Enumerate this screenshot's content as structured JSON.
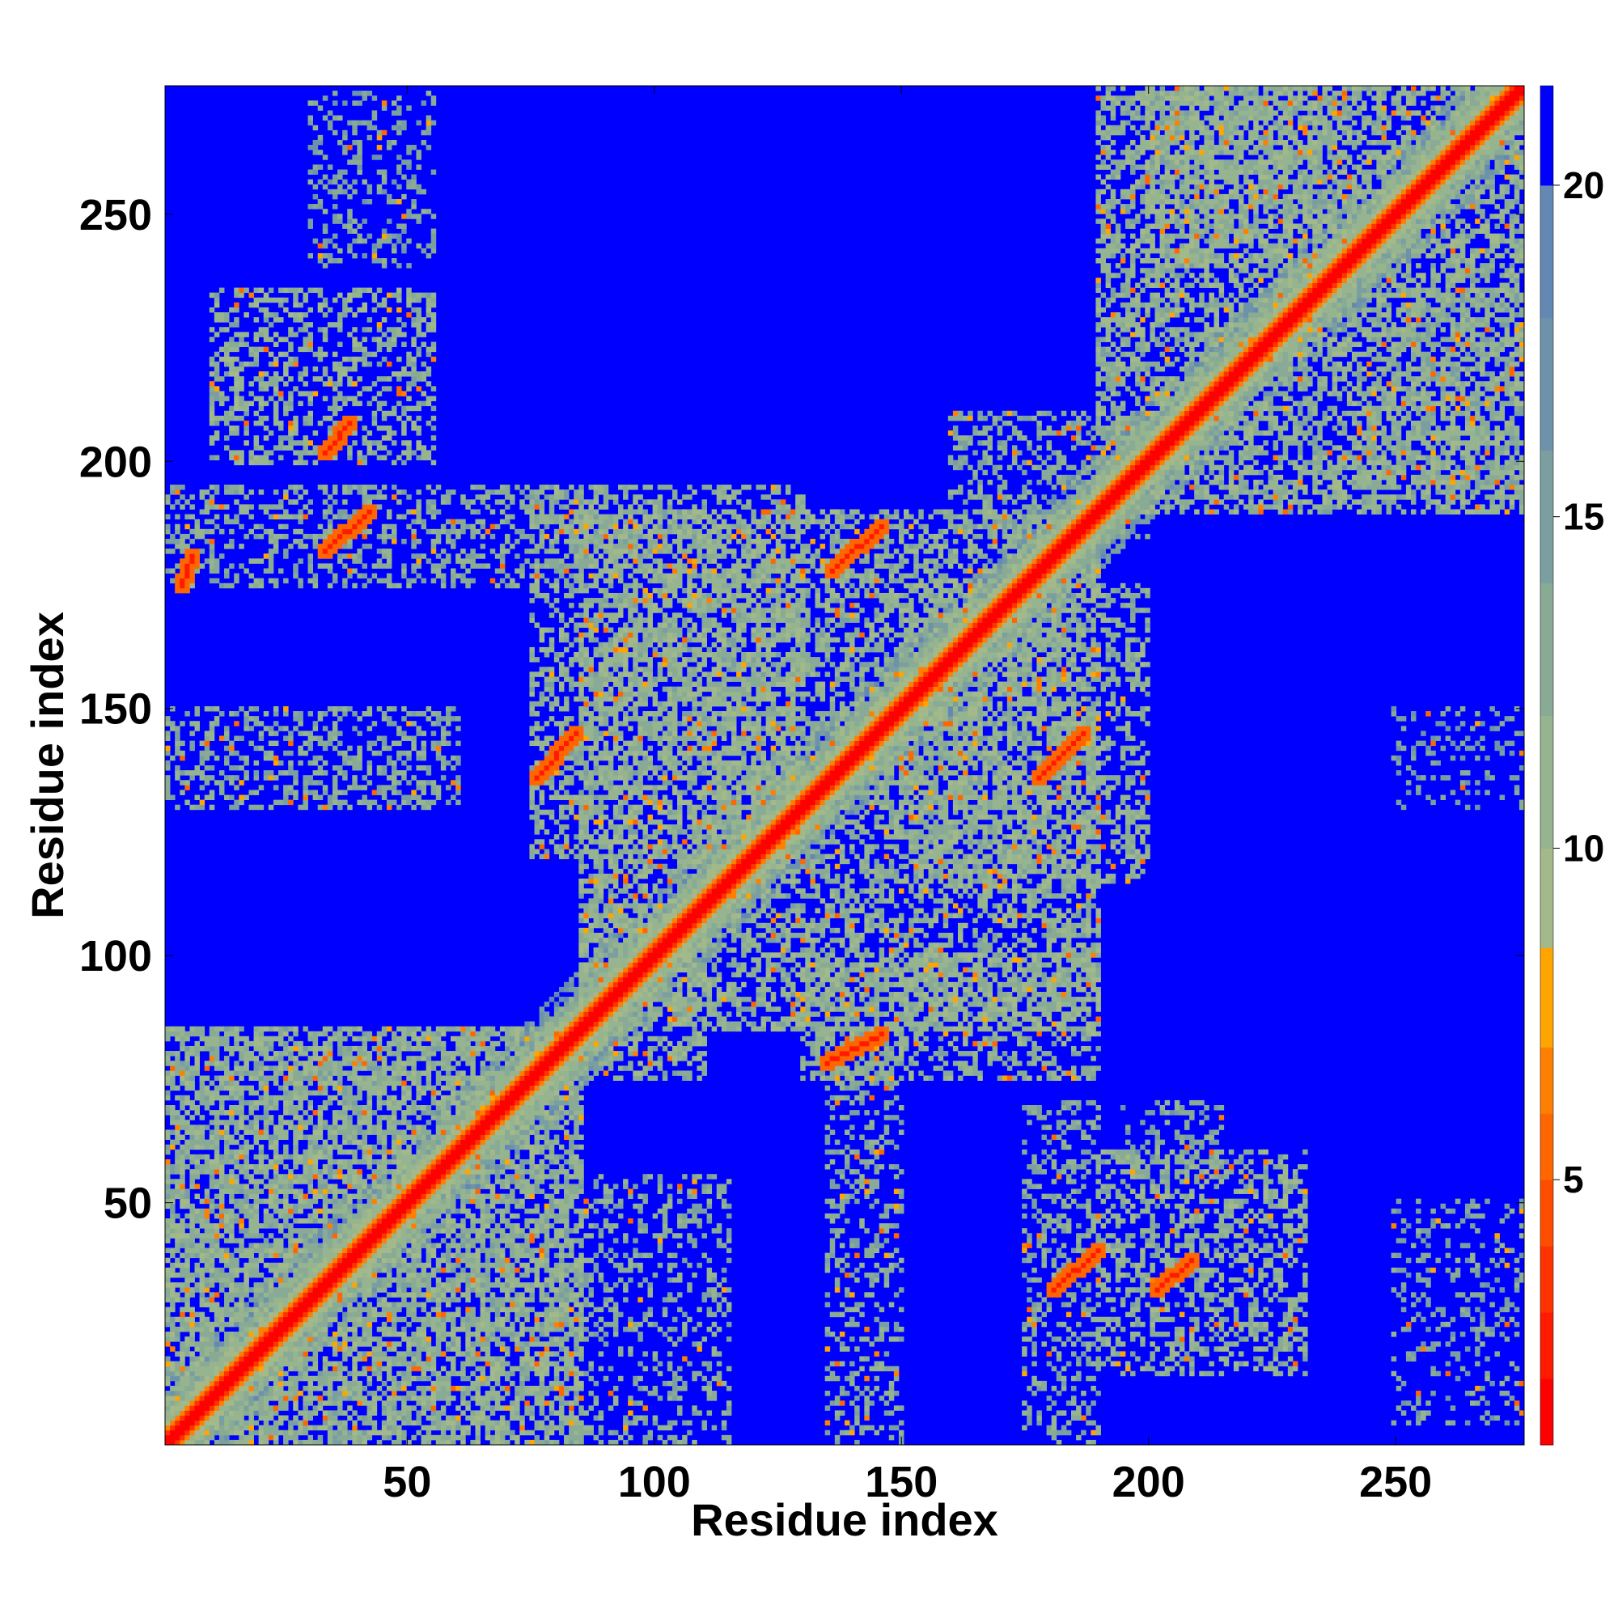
{
  "chart_data": {
    "type": "heatmap",
    "title": "",
    "xlabel": "Residue index",
    "ylabel": "Residue index",
    "n_residues": 276,
    "xlim": [
      1,
      276
    ],
    "ylim": [
      1,
      276
    ],
    "x_ticks": [
      50,
      100,
      150,
      200,
      250
    ],
    "y_ticks": [
      50,
      100,
      150,
      200,
      250
    ],
    "colorbar": {
      "ticks": [
        5,
        10,
        15,
        20
      ],
      "range": [
        1,
        21.5
      ],
      "colors": [
        {
          "until": 2,
          "color": "#ff0000"
        },
        {
          "until": 3,
          "color": "#ff1a00"
        },
        {
          "until": 4,
          "color": "#ff3300"
        },
        {
          "until": 5,
          "color": "#ff4d00"
        },
        {
          "until": 6,
          "color": "#ff6600"
        },
        {
          "until": 7,
          "color": "#ff8000"
        },
        {
          "until": 8.5,
          "color": "#ffa500"
        },
        {
          "until": 10,
          "color": "#a3b98a"
        },
        {
          "until": 12,
          "color": "#95b48f"
        },
        {
          "until": 14,
          "color": "#89aa95"
        },
        {
          "until": 16,
          "color": "#7b9fa0"
        },
        {
          "until": 18,
          "color": "#6d93aa"
        },
        {
          "until": 20,
          "color": "#6388b3"
        },
        {
          "until": 21.5,
          "color": "#0000ff"
        }
      ]
    },
    "background_value": 21.5,
    "contact_blocks": [
      {
        "x": [
          1,
          85
        ],
        "y": [
          1,
          85
        ],
        "value": 12,
        "density": 0.75
      },
      {
        "x": [
          85,
          190
        ],
        "y": [
          85,
          190
        ],
        "value": 12,
        "density": 0.55
      },
      {
        "x": [
          190,
          276
        ],
        "y": [
          190,
          276
        ],
        "value": 12,
        "density": 0.6
      },
      {
        "x": [
          85,
          115
        ],
        "y": [
          1,
          55
        ],
        "value": 13,
        "density": 0.3
      },
      {
        "x": [
          135,
          150
        ],
        "y": [
          1,
          85
        ],
        "value": 13,
        "density": 0.35
      },
      {
        "x": [
          175,
          190
        ],
        "y": [
          1,
          70
        ],
        "value": 13,
        "density": 0.35
      },
      {
        "x": [
          190,
          232
        ],
        "y": [
          15,
          60
        ],
        "value": 12,
        "density": 0.45
      },
      {
        "x": [
          250,
          276
        ],
        "y": [
          5,
          50
        ],
        "value": 14,
        "density": 0.25
      },
      {
        "x": [
          85,
          110
        ],
        "y": [
          75,
          110
        ],
        "value": 12,
        "density": 0.5
      },
      {
        "x": [
          130,
          190
        ],
        "y": [
          75,
          100
        ],
        "value": 12,
        "density": 0.45
      },
      {
        "x": [
          1,
          60
        ],
        "y": [
          130,
          150
        ],
        "value": 13,
        "density": 0.45
      },
      {
        "x": [
          1,
          90
        ],
        "y": [
          175,
          195
        ],
        "value": 13,
        "density": 0.4
      },
      {
        "x": [
          10,
          55
        ],
        "y": [
          200,
          235
        ],
        "value": 12,
        "density": 0.45
      },
      {
        "x": [
          30,
          55
        ],
        "y": [
          240,
          275
        ],
        "value": 14,
        "density": 0.3
      },
      {
        "x": [
          75,
          130
        ],
        "y": [
          120,
          195
        ],
        "value": 12,
        "density": 0.45
      },
      {
        "x": [
          150,
          200
        ],
        "y": [
          115,
          175
        ],
        "value": 12,
        "density": 0.45
      },
      {
        "x": [
          160,
          200
        ],
        "y": [
          185,
          210
        ],
        "value": 13,
        "density": 0.4
      },
      {
        "x": [
          245,
          276
        ],
        "y": [
          195,
          235
        ],
        "value": 13,
        "density": 0.4
      },
      {
        "x": [
          200,
          240
        ],
        "y": [
          240,
          276
        ],
        "value": 12,
        "density": 0.5
      },
      {
        "x": [
          250,
          276
        ],
        "y": [
          130,
          150
        ],
        "value": 15,
        "density": 0.2
      },
      {
        "x": [
          195,
          215
        ],
        "y": [
          55,
          70
        ],
        "value": 14,
        "density": 0.3
      }
    ],
    "contact_strands": [
      {
        "from": [
          33,
          182
        ],
        "to": [
          42,
          190
        ],
        "value": 3
      },
      {
        "from": [
          33,
          202
        ],
        "to": [
          38,
          208
        ],
        "value": 3
      },
      {
        "from": [
          76,
          136
        ],
        "to": [
          84,
          145
        ],
        "value": 3
      },
      {
        "from": [
          135,
          78
        ],
        "to": [
          146,
          84
        ],
        "value": 3
      },
      {
        "from": [
          136,
          178
        ],
        "to": [
          146,
          187
        ],
        "value": 3
      },
      {
        "from": [
          178,
          136
        ],
        "to": [
          187,
          145
        ],
        "value": 3
      },
      {
        "from": [
          181,
          32
        ],
        "to": [
          190,
          40
        ],
        "value": 3
      },
      {
        "from": [
          202,
          32
        ],
        "to": [
          209,
          38
        ],
        "value": 3
      },
      {
        "from": [
          4,
          175
        ],
        "to": [
          6,
          181
        ],
        "value": 3
      }
    ]
  }
}
